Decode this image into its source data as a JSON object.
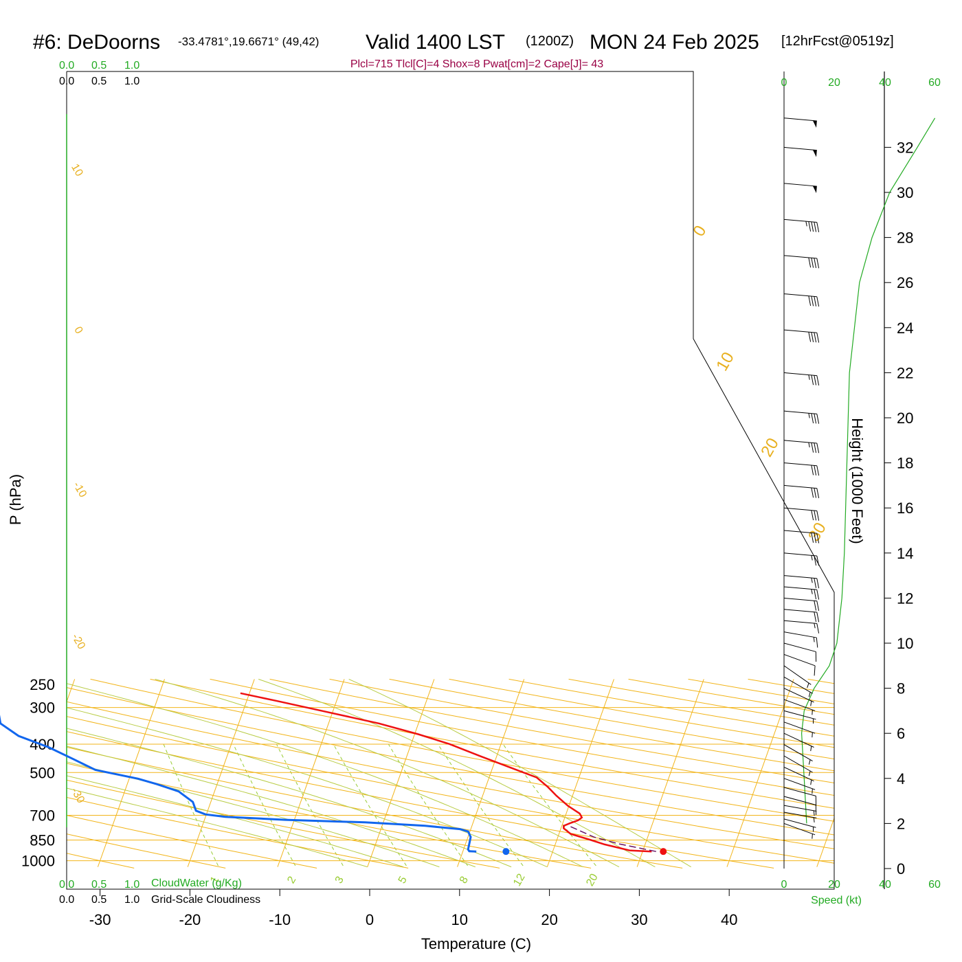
{
  "header": {
    "station": "#6: DeDoorns",
    "coords": "-33.4781°,19.6671° (49,42)",
    "valid": "Valid 1400 LST",
    "zulu": "(1200Z)",
    "date": "MON 24 Feb 2025",
    "fcst": "[12hrFcst@0519z]"
  },
  "indices": "Plcl=715 Tlcl[C]=4 Shox=8 Pwat[cm]=2 Cape[J]= 43",
  "cloud": {
    "scale": [
      "0.0",
      "0.5",
      "1.0"
    ],
    "water_label": "CloudWater (g/Kg)",
    "gs_label": "Grid-Scale Cloudiness"
  },
  "speed": {
    "ticks": [
      "0",
      "20",
      "40",
      "60"
    ],
    "label": "Speed (kt)"
  },
  "colors": {
    "temperature": "#ee1111",
    "dewpoint": "#1166ee",
    "isotherm": "#f2b418",
    "mixing": "#99cc33",
    "dry_adiabat": "#b8cc44",
    "green": "#22aa22",
    "parcel": "#661166"
  },
  "chart_data": {
    "type": "skew-t",
    "xlabel": "Temperature (C)",
    "ylabel": "P (hPa)",
    "y2label": "Height (1000 Feet)",
    "temperature_ticks": [
      -30,
      -20,
      -10,
      0,
      10,
      20,
      30,
      40
    ],
    "pressure_ticks": [
      250,
      300,
      400,
      500,
      700,
      850,
      1000
    ],
    "height_ticks": [
      0,
      2,
      4,
      6,
      8,
      10,
      12,
      14,
      16,
      18,
      20,
      22,
      24,
      26,
      28,
      30,
      32
    ],
    "isotherm_labels": [
      {
        "value": "10",
        "p": 283,
        "t": 10
      },
      {
        "value": "0",
        "p": 378,
        "t": 0
      },
      {
        "value": "-10",
        "p": 525,
        "t": -10
      },
      {
        "value": "-20",
        "p": 690,
        "t": -20
      },
      {
        "value": "-30",
        "p": 885,
        "t": -30
      },
      {
        "value": "0",
        "p": 335,
        "t": 0
      },
      {
        "value": "10",
        "p": 420,
        "t": 10
      },
      {
        "value": "20",
        "p": 490,
        "t": 20
      },
      {
        "value": "30",
        "p": 565,
        "t": 30
      }
    ],
    "mixing_ratio_labels": [
      "1",
      "2",
      "3",
      "5",
      "8",
      "12",
      "20"
    ],
    "temperature_profile": [
      {
        "p": 930,
        "t": 31.0
      },
      {
        "p": 922,
        "t": 28.5
      },
      {
        "p": 880,
        "t": 25.5
      },
      {
        "p": 850,
        "t": 23.8
      },
      {
        "p": 810,
        "t": 21.3
      },
      {
        "p": 775,
        "t": 20.3
      },
      {
        "p": 760,
        "t": 20.2
      },
      {
        "p": 745,
        "t": 20.8
      },
      {
        "p": 728,
        "t": 21.6
      },
      {
        "p": 712,
        "t": 21.9
      },
      {
        "p": 690,
        "t": 21.5
      },
      {
        "p": 650,
        "t": 19.9
      },
      {
        "p": 600,
        "t": 18.2
      },
      {
        "p": 560,
        "t": 16.9
      },
      {
        "p": 520,
        "t": 15.3
      },
      {
        "p": 480,
        "t": 11.9
      },
      {
        "p": 440,
        "t": 8.2
      },
      {
        "p": 400,
        "t": 4.3
      },
      {
        "p": 370,
        "t": 0.4
      },
      {
        "p": 340,
        "t": -4.4
      },
      {
        "p": 310,
        "t": -10.8
      },
      {
        "p": 285,
        "t": -16.6
      },
      {
        "p": 268,
        "t": -21.0
      }
    ],
    "dewpoint_profile": [
      {
        "p": 930,
        "t": 11.5
      },
      {
        "p": 928,
        "t": 10.7
      },
      {
        "p": 915,
        "t": 10.5
      },
      {
        "p": 870,
        "t": 10.4
      },
      {
        "p": 830,
        "t": 10.3
      },
      {
        "p": 795,
        "t": 9.8
      },
      {
        "p": 780,
        "t": 8.8
      },
      {
        "p": 760,
        "t": 4.8
      },
      {
        "p": 740,
        "t": -2.0
      },
      {
        "p": 725,
        "t": -11.0
      },
      {
        "p": 708,
        "t": -17.8
      },
      {
        "p": 695,
        "t": -20.1
      },
      {
        "p": 675,
        "t": -21.3
      },
      {
        "p": 630,
        "t": -22.0
      },
      {
        "p": 580,
        "t": -24.0
      },
      {
        "p": 548,
        "t": -26.7
      },
      {
        "p": 525,
        "t": -29.0
      },
      {
        "p": 490,
        "t": -34.1
      },
      {
        "p": 450,
        "t": -37.0
      },
      {
        "p": 410,
        "t": -40.2
      },
      {
        "p": 375,
        "t": -44.0
      },
      {
        "p": 340,
        "t": -46.5
      },
      {
        "p": 310,
        "t": -47.2
      },
      {
        "p": 285,
        "t": -49.3
      },
      {
        "p": 268,
        "t": -50.3
      }
    ],
    "parcel_path": [
      {
        "p": 930,
        "t": 31.5
      },
      {
        "p": 875,
        "t": 27.0
      },
      {
        "p": 830,
        "t": 24.0
      },
      {
        "p": 790,
        "t": 22.2
      },
      {
        "p": 765,
        "t": 21.0
      }
    ],
    "surface_temperature": {
      "p": 930,
      "t": 32.3
    },
    "surface_dewpoint": {
      "p": 930,
      "t": 14.8
    },
    "wind": [
      {
        "h": 2.0,
        "dir": 290,
        "spd": 5
      },
      {
        "h": 2.2,
        "dir": 285,
        "spd": 6
      },
      {
        "h": 2.5,
        "dir": 280,
        "spd": 7
      },
      {
        "h": 2.8,
        "dir": 280,
        "spd": 7
      },
      {
        "h": 3.2,
        "dir": 285,
        "spd": 8
      },
      {
        "h": 3.6,
        "dir": 285,
        "spd": 8
      },
      {
        "h": 4.0,
        "dir": 290,
        "spd": 7
      },
      {
        "h": 4.5,
        "dir": 295,
        "spd": 6
      },
      {
        "h": 5.0,
        "dir": 300,
        "spd": 5
      },
      {
        "h": 5.5,
        "dir": 300,
        "spd": 5
      },
      {
        "h": 6.0,
        "dir": 295,
        "spd": 4
      },
      {
        "h": 6.5,
        "dir": 290,
        "spd": 4
      },
      {
        "h": 7.0,
        "dir": 285,
        "spd": 3
      },
      {
        "h": 7.5,
        "dir": 290,
        "spd": 3
      },
      {
        "h": 8.0,
        "dir": 295,
        "spd": 3
      },
      {
        "h": 8.5,
        "dir": 300,
        "spd": 3
      },
      {
        "h": 9.0,
        "dir": 305,
        "spd": 5
      },
      {
        "h": 9.5,
        "dir": 290,
        "spd": 8
      },
      {
        "h": 10.0,
        "dir": 285,
        "spd": 12
      },
      {
        "h": 10.5,
        "dir": 280,
        "spd": 15
      },
      {
        "h": 11.0,
        "dir": 275,
        "spd": 17
      },
      {
        "h": 11.5,
        "dir": 275,
        "spd": 19
      },
      {
        "h": 12.0,
        "dir": 275,
        "spd": 21
      },
      {
        "h": 12.5,
        "dir": 275,
        "spd": 23
      },
      {
        "h": 13.0,
        "dir": 275,
        "spd": 25
      },
      {
        "h": 14.0,
        "dir": 275,
        "spd": 27
      },
      {
        "h": 15.0,
        "dir": 275,
        "spd": 28
      },
      {
        "h": 16.0,
        "dir": 275,
        "spd": 29
      },
      {
        "h": 17.0,
        "dir": 275,
        "spd": 30
      },
      {
        "h": 18.0,
        "dir": 275,
        "spd": 32
      },
      {
        "h": 19.0,
        "dir": 275,
        "spd": 33
      },
      {
        "h": 20.3,
        "dir": 275,
        "spd": 34
      },
      {
        "h": 22.0,
        "dir": 275,
        "spd": 36
      },
      {
        "h": 23.9,
        "dir": 275,
        "spd": 38
      },
      {
        "h": 25.5,
        "dir": 275,
        "spd": 39
      },
      {
        "h": 27.2,
        "dir": 275,
        "spd": 40
      },
      {
        "h": 28.8,
        "dir": 275,
        "spd": 47
      },
      {
        "h": 30.4,
        "dir": 275,
        "spd": 48
      },
      {
        "h": 32.0,
        "dir": 275,
        "spd": 49
      },
      {
        "h": 33.3,
        "dir": 275,
        "spd": 50
      }
    ],
    "wind_speed_profile": [
      {
        "h": 2.0,
        "spd": 9
      },
      {
        "h": 4.0,
        "spd": 8
      },
      {
        "h": 6.0,
        "spd": 7
      },
      {
        "h": 7.0,
        "spd": 8
      },
      {
        "h": 8.0,
        "spd": 12
      },
      {
        "h": 9.0,
        "spd": 18
      },
      {
        "h": 10.0,
        "spd": 21
      },
      {
        "h": 12.0,
        "spd": 23
      },
      {
        "h": 14.0,
        "spd": 24
      },
      {
        "h": 18.0,
        "spd": 25
      },
      {
        "h": 22.0,
        "spd": 26
      },
      {
        "h": 24.0,
        "spd": 28
      },
      {
        "h": 26.0,
        "spd": 30
      },
      {
        "h": 28.0,
        "spd": 35
      },
      {
        "h": 30.0,
        "spd": 42
      },
      {
        "h": 32.0,
        "spd": 53
      },
      {
        "h": 33.3,
        "spd": 60
      }
    ]
  }
}
